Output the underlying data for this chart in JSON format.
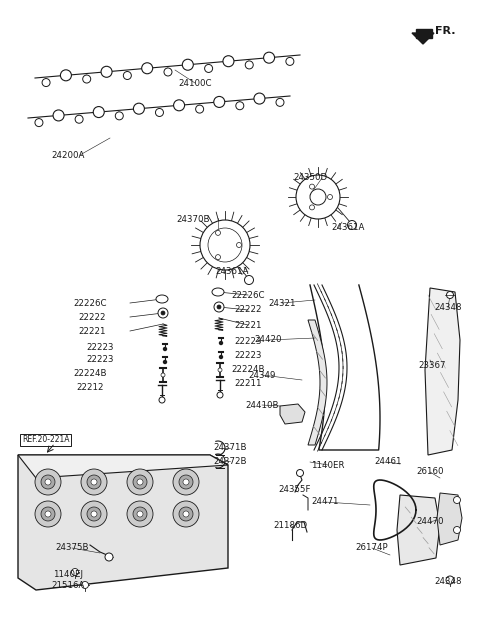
{
  "bg_color": "#ffffff",
  "line_color": "#1a1a1a",
  "label_color": "#1a1a1a",
  "figsize": [
    4.8,
    6.42
  ],
  "dpi": 100,
  "labels": [
    [
      "24100C",
      195,
      83
    ],
    [
      "24200A",
      68,
      155
    ],
    [
      "24370B",
      193,
      220
    ],
    [
      "24350D",
      310,
      178
    ],
    [
      "24361A",
      348,
      228
    ],
    [
      "24361A",
      232,
      272
    ],
    [
      "22226C",
      90,
      303
    ],
    [
      "22226C",
      248,
      295
    ],
    [
      "22222",
      92,
      317
    ],
    [
      "22222",
      248,
      310
    ],
    [
      "22221",
      92,
      331
    ],
    [
      "22221",
      248,
      325
    ],
    [
      "22223",
      100,
      347
    ],
    [
      "22223",
      248,
      341
    ],
    [
      "22223",
      100,
      360
    ],
    [
      "22223",
      248,
      355
    ],
    [
      "22224B",
      90,
      374
    ],
    [
      "22224B",
      248,
      369
    ],
    [
      "22212",
      90,
      388
    ],
    [
      "22211",
      248,
      383
    ],
    [
      "24321",
      282,
      303
    ],
    [
      "24420",
      268,
      340
    ],
    [
      "24349",
      262,
      375
    ],
    [
      "24410B",
      262,
      405
    ],
    [
      "23367",
      432,
      365
    ],
    [
      "24348",
      448,
      308
    ],
    [
      "24348",
      448,
      582
    ],
    [
      "1140ER",
      328,
      465
    ],
    [
      "24461",
      388,
      462
    ],
    [
      "26160",
      430,
      472
    ],
    [
      "24470",
      430,
      522
    ],
    [
      "24471",
      325,
      502
    ],
    [
      "26174P",
      372,
      548
    ],
    [
      "24371B",
      230,
      448
    ],
    [
      "24372B",
      230,
      461
    ],
    [
      "24355F",
      295,
      490
    ],
    [
      "21186D",
      290,
      525
    ],
    [
      "24375B",
      72,
      548
    ],
    [
      "1140EJ\n21516A",
      68,
      580
    ]
  ]
}
